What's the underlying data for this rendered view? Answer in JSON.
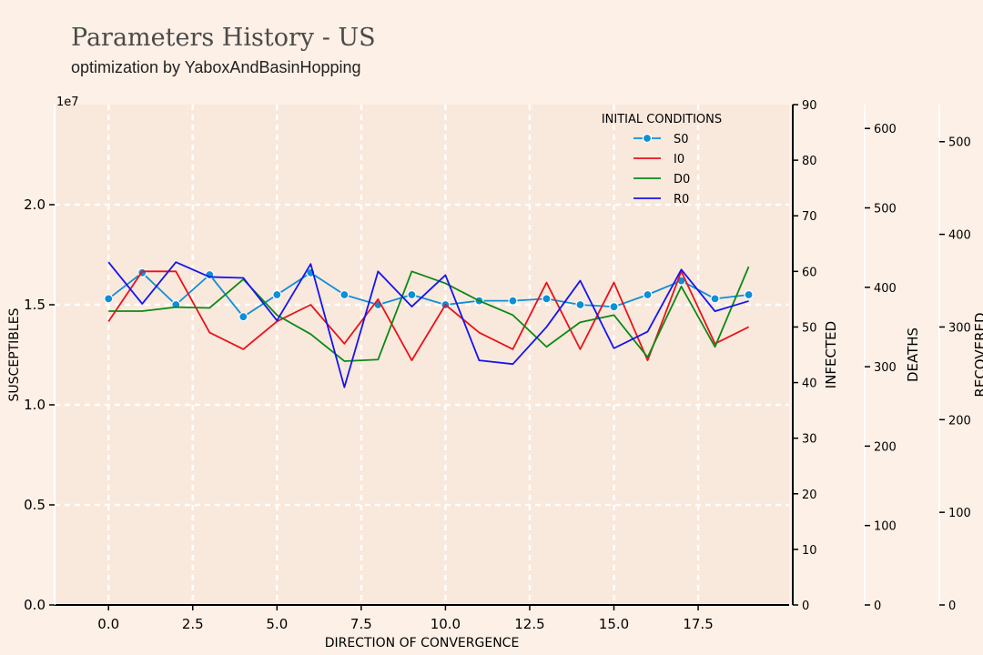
{
  "header": {
    "title": "Parameters History - US",
    "subtitle": "optimization by YaboxAndBasinHopping"
  },
  "chart_data": {
    "type": "line",
    "xlabel": "DIRECTION OF CONVERGENCE",
    "x": [
      0,
      1,
      2,
      3,
      4,
      5,
      6,
      7,
      8,
      9,
      10,
      11,
      12,
      13,
      14,
      15,
      16,
      17,
      18,
      19
    ],
    "x_ticks": [
      "0.0",
      "2.5",
      "5.0",
      "7.5",
      "10.0",
      "12.5",
      "15.0",
      "17.5"
    ],
    "x_tick_values": [
      0,
      2.5,
      5,
      7.5,
      10,
      12.5,
      15,
      17.5
    ],
    "xlim": [
      -1.6,
      20.2
    ],
    "grid": true,
    "legend": {
      "title": "INITIAL CONDITIONS",
      "position": "top-right"
    },
    "axes": [
      {
        "id": "susceptibles",
        "label": "SUSCEPTIBLES",
        "side": "left",
        "offset_text": "1e7",
        "ylim": [
          0,
          2.5
        ],
        "ticks": [
          0,
          0.5,
          1.0,
          1.5,
          2.0
        ],
        "tick_labels": [
          "0.0",
          "0.5",
          "1.0",
          "1.5",
          "2.0"
        ]
      },
      {
        "id": "infected",
        "label": "INFECTED",
        "side": "right",
        "ylim": [
          0,
          90
        ],
        "ticks": [
          0,
          10,
          20,
          30,
          40,
          50,
          60,
          70,
          80,
          90
        ],
        "tick_labels": [
          "0",
          "10",
          "20",
          "30",
          "40",
          "50",
          "60",
          "70",
          "80",
          "90"
        ]
      },
      {
        "id": "deaths",
        "label": "DEATHS",
        "side": "right",
        "ylim": [
          0,
          630
        ],
        "ticks": [
          0,
          100,
          200,
          300,
          400,
          500,
          600
        ],
        "tick_labels": [
          "0",
          "100",
          "200",
          "300",
          "400",
          "500",
          "600"
        ]
      },
      {
        "id": "recovered",
        "label": "RECOVERED",
        "side": "right",
        "ylim": [
          0,
          540
        ],
        "ticks": [
          0,
          100,
          200,
          300,
          400,
          500
        ],
        "tick_labels": [
          "0",
          "100",
          "200",
          "300",
          "400",
          "500"
        ]
      }
    ],
    "series": [
      {
        "name": "S0",
        "axis": "susceptibles",
        "color": "#0e8fd6",
        "markers": true,
        "values": [
          1.53,
          1.66,
          1.5,
          1.65,
          1.44,
          1.55,
          1.66,
          1.55,
          1.5,
          1.55,
          1.5,
          1.52,
          1.52,
          1.53,
          1.5,
          1.49,
          1.55,
          1.62,
          1.53,
          1.55
        ]
      },
      {
        "name": "I0",
        "axis": "infected",
        "color": "#e8131b",
        "markers": false,
        "values": [
          51,
          60,
          60,
          49,
          46,
          51,
          54,
          47,
          55,
          44,
          54,
          49,
          46,
          58,
          46,
          58,
          44,
          60,
          47,
          50
        ]
      },
      {
        "name": "D0",
        "axis": "deaths",
        "color": "#0a8a14",
        "markers": false,
        "values": [
          370,
          370,
          375,
          374,
          410,
          365,
          341,
          307,
          309,
          420,
          405,
          383,
          365,
          325,
          356,
          365,
          312,
          401,
          325,
          426
        ]
      },
      {
        "name": "R0",
        "axis": "recovered",
        "color": "#1414f0",
        "markers": false,
        "values": [
          370,
          325,
          370,
          354,
          353,
          307,
          368,
          235,
          360,
          322,
          356,
          264,
          260,
          300,
          350,
          277,
          295,
          362,
          317,
          328
        ]
      }
    ]
  }
}
